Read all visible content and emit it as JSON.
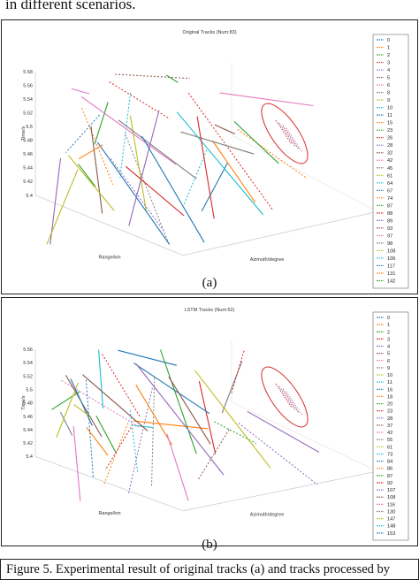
{
  "header_text": "in different scenarios.",
  "panel_labels": [
    "(a)",
    "(b)"
  ],
  "figure_caption": "Figure 5. Experimental result of original tracks (a) and tracks processed by",
  "chart_data": [
    {
      "type": "line",
      "title": "Original Tracks (Num:83)",
      "zlabel": "Time/s",
      "xlabel": "Range/km",
      "ylabel": "Azimuth/degree",
      "z_ticks": [
        "5.58",
        "5.56",
        "5.54",
        "5.52",
        "5.5",
        "5.48",
        "5.46",
        "5.44",
        "5.42",
        "5.4"
      ],
      "legend": [
        "0",
        "1",
        "2",
        "3",
        "4",
        "5",
        "6",
        "8",
        "9",
        "10",
        "11",
        "15",
        "23",
        "26",
        "28",
        "32",
        "42",
        "45",
        "61",
        "64",
        "67",
        "74",
        "87",
        "88",
        "89",
        "93",
        "97",
        "98",
        "108",
        "106",
        "117",
        "131",
        "142"
      ],
      "legend_colors": [
        "#1f77b4",
        "#ff7f0e",
        "#2ca02c",
        "#d62728",
        "#9467bd",
        "#8c564b",
        "#e377c2",
        "#7f7f7f",
        "#bcbd22",
        "#17becf"
      ],
      "annotation": "red ellipse highlighting cluster of tracks"
    },
    {
      "type": "line",
      "title": "LSTM Tracks (Num:52)",
      "zlabel": "Time/s",
      "xlabel": "Range/km",
      "ylabel": "Azimuth/degree",
      "z_ticks": [
        "5.56",
        "5.54",
        "5.52",
        "5.5",
        "5.48",
        "5.46",
        "5.44",
        "5.42",
        "5.4"
      ],
      "legend": [
        "0",
        "1",
        "2",
        "3",
        "4",
        "5",
        "6",
        "9",
        "10",
        "11",
        "16",
        "18",
        "20",
        "23",
        "28",
        "37",
        "42",
        "55",
        "61",
        "73",
        "84",
        "86",
        "87",
        "92",
        "107",
        "108",
        "116",
        "130",
        "147",
        "148",
        "153"
      ],
      "legend_colors": [
        "#1f77b4",
        "#ff7f0e",
        "#2ca02c",
        "#d62728",
        "#9467bd",
        "#8c564b",
        "#e377c2",
        "#7f7f7f",
        "#bcbd22",
        "#17becf"
      ],
      "annotation": "red ellipse highlighting cluster of tracks"
    }
  ]
}
